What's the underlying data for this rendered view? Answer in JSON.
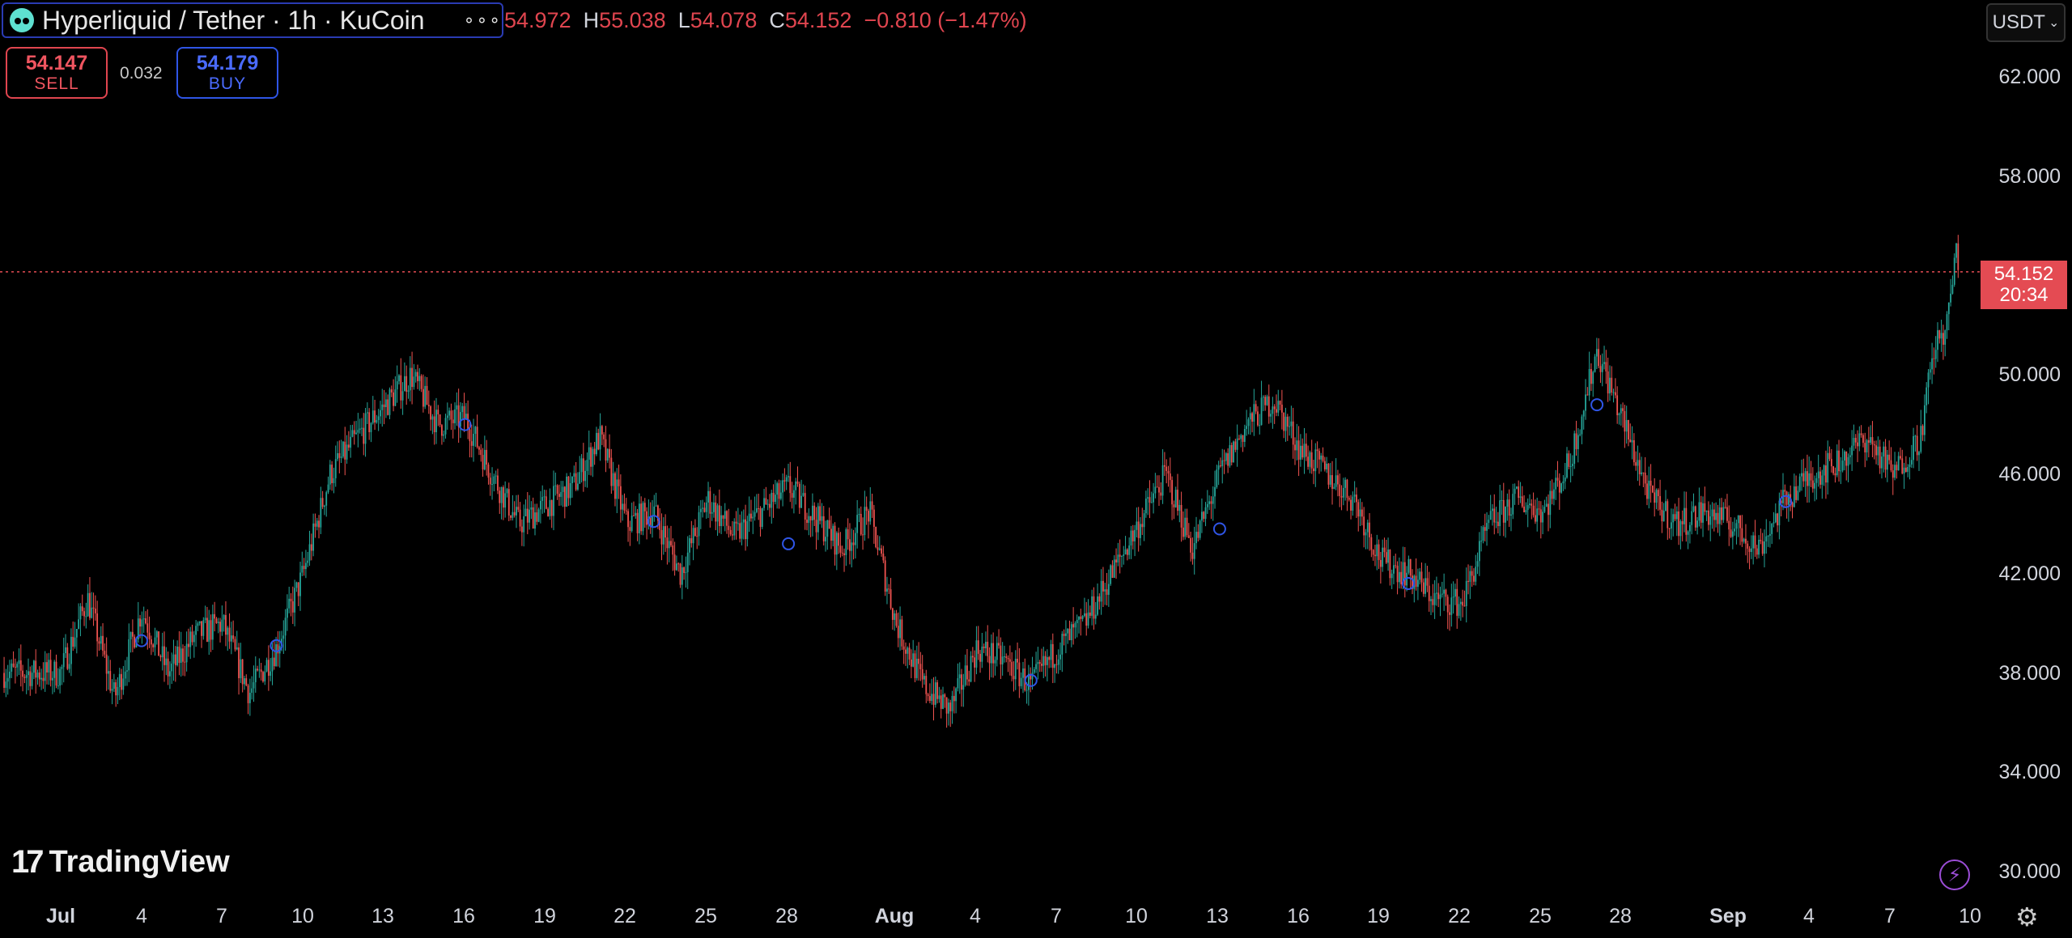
{
  "header": {
    "symbol_title": "Hyperliquid / Tether · 1h · KuCoin",
    "ohlc": {
      "open_value": "54.972",
      "high_label": "H",
      "high_value": "55.038",
      "low_label": "L",
      "low_value": "54.078",
      "close_label": "C",
      "close_value": "54.152",
      "change": "−0.810 (−1.47%)"
    }
  },
  "trade": {
    "sell_price": "54.147",
    "sell_label": "SELL",
    "spread": "0.032",
    "buy_price": "54.179",
    "buy_label": "BUY"
  },
  "currency_selector": {
    "value": "USDT"
  },
  "price_axis": {
    "labels": [
      "62.000",
      "58.000",
      "50.000",
      "46.000",
      "42.000",
      "38.000",
      "34.000",
      "30.000"
    ],
    "current_price": "54.152",
    "countdown": "20:34"
  },
  "time_axis": {
    "labels": [
      {
        "text": "Jul",
        "major": true
      },
      {
        "text": "4"
      },
      {
        "text": "7"
      },
      {
        "text": "10"
      },
      {
        "text": "13"
      },
      {
        "text": "16"
      },
      {
        "text": "19"
      },
      {
        "text": "22"
      },
      {
        "text": "25"
      },
      {
        "text": "28"
      },
      {
        "text": "Aug",
        "major": true
      },
      {
        "text": "4"
      },
      {
        "text": "7"
      },
      {
        "text": "10"
      },
      {
        "text": "13"
      },
      {
        "text": "16"
      },
      {
        "text": "19"
      },
      {
        "text": "22"
      },
      {
        "text": "25"
      },
      {
        "text": "28"
      },
      {
        "text": "Sep",
        "major": true
      },
      {
        "text": "4"
      },
      {
        "text": "7"
      },
      {
        "text": "10"
      }
    ]
  },
  "branding": {
    "logo_text": "TradingView",
    "logo_mark": "17"
  },
  "colors": {
    "up": "#26a69a",
    "down": "#ef5350",
    "marker": "#2f55e6",
    "accent": "#e44b53",
    "background": "#000000"
  },
  "chart_data": {
    "type": "candlestick",
    "title": "",
    "xlabel": "",
    "ylabel": "",
    "ylim": [
      30,
      64
    ],
    "x_range": [
      "Jul 1",
      "Sep 10"
    ],
    "last_price": 54.152,
    "series": [
      {
        "price_path": [
          {
            "x": "Jul 1",
            "y": 38.0
          },
          {
            "x": "Jul 2",
            "y": 41.0
          },
          {
            "x": "Jul 3",
            "y": 37.0
          },
          {
            "x": "Jul 4",
            "y": 40.5
          },
          {
            "x": "Jul 5",
            "y": 38.0
          },
          {
            "x": "Jul 6",
            "y": 39.5
          },
          {
            "x": "Jul 7",
            "y": 40.0
          },
          {
            "x": "Jul 8",
            "y": 37.2
          },
          {
            "x": "Jul 9",
            "y": 39.0
          },
          {
            "x": "Jul 10",
            "y": 42.0
          },
          {
            "x": "Jul 11",
            "y": 46.0
          },
          {
            "x": "Jul 12",
            "y": 47.5
          },
          {
            "x": "Jul 14",
            "y": 50.0
          },
          {
            "x": "Jul 15",
            "y": 48.0
          },
          {
            "x": "Jul 16",
            "y": 48.3
          },
          {
            "x": "Jul 17",
            "y": 46.0
          },
          {
            "x": "Jul 18",
            "y": 44.0
          },
          {
            "x": "Jul 20",
            "y": 45.5
          },
          {
            "x": "Jul 21",
            "y": 47.5
          },
          {
            "x": "Jul 22",
            "y": 44.0
          },
          {
            "x": "Jul 23",
            "y": 44.5
          },
          {
            "x": "Jul 24",
            "y": 42.0
          },
          {
            "x": "Jul 25",
            "y": 45.0
          },
          {
            "x": "Jul 26",
            "y": 43.5
          },
          {
            "x": "Jul 28",
            "y": 45.5
          },
          {
            "x": "Jul 30",
            "y": 43.0
          },
          {
            "x": "Jul 31",
            "y": 44.5
          },
          {
            "x": "Aug 1",
            "y": 40.0
          },
          {
            "x": "Aug 2",
            "y": 37.5
          },
          {
            "x": "Aug 3",
            "y": 36.5
          },
          {
            "x": "Aug 4",
            "y": 39.0
          },
          {
            "x": "Aug 5",
            "y": 38.5
          },
          {
            "x": "Aug 6",
            "y": 37.5
          },
          {
            "x": "Aug 7",
            "y": 39.0
          },
          {
            "x": "Aug 8",
            "y": 40.0
          },
          {
            "x": "Aug 9",
            "y": 42.0
          },
          {
            "x": "Aug 10",
            "y": 44.0
          },
          {
            "x": "Aug 11",
            "y": 46.0
          },
          {
            "x": "Aug 12",
            "y": 43.0
          },
          {
            "x": "Aug 13",
            "y": 46.0
          },
          {
            "x": "Aug 14",
            "y": 48.0
          },
          {
            "x": "Aug 15",
            "y": 49.0
          },
          {
            "x": "Aug 16",
            "y": 47.0
          },
          {
            "x": "Aug 17",
            "y": 46.0
          },
          {
            "x": "Aug 18",
            "y": 45.0
          },
          {
            "x": "Aug 19",
            "y": 42.5
          },
          {
            "x": "Aug 20",
            "y": 42.0
          },
          {
            "x": "Aug 21",
            "y": 41.0
          },
          {
            "x": "Aug 22",
            "y": 40.8
          },
          {
            "x": "Aug 23",
            "y": 44.0
          },
          {
            "x": "Aug 24",
            "y": 45.0
          },
          {
            "x": "Aug 25",
            "y": 44.5
          },
          {
            "x": "Aug 26",
            "y": 46.5
          },
          {
            "x": "Aug 27",
            "y": 51.0
          },
          {
            "x": "Aug 28",
            "y": 48.0
          },
          {
            "x": "Aug 29",
            "y": 45.0
          },
          {
            "x": "Aug 30",
            "y": 44.0
          },
          {
            "x": "Aug 31",
            "y": 44.5
          },
          {
            "x": "Sep 1",
            "y": 44.0
          },
          {
            "x": "Sep 2",
            "y": 43.0
          },
          {
            "x": "Sep 3",
            "y": 45.0
          },
          {
            "x": "Sep 4",
            "y": 46.0
          },
          {
            "x": "Sep 5",
            "y": 46.5
          },
          {
            "x": "Sep 6",
            "y": 47.5
          },
          {
            "x": "Sep 7",
            "y": 46.0
          },
          {
            "x": "Sep 8",
            "y": 47.5
          },
          {
            "x": "Sep 8.5",
            "y": 51.0
          },
          {
            "x": "Sep 9",
            "y": 52.0
          },
          {
            "x": "Sep 9.3",
            "y": 55.0
          },
          {
            "x": "Sep 9.4",
            "y": 54.152
          }
        ]
      }
    ],
    "markers": [
      {
        "x": "Jul 4",
        "y": 39.3
      },
      {
        "x": "Jul 9",
        "y": 39.1
      },
      {
        "x": "Jul 16",
        "y": 48.0
      },
      {
        "x": "Jul 23",
        "y": 44.1
      },
      {
        "x": "Jul 28",
        "y": 43.2
      },
      {
        "x": "Aug 6",
        "y": 37.7
      },
      {
        "x": "Aug 13",
        "y": 43.8
      },
      {
        "x": "Aug 20",
        "y": 41.6
      },
      {
        "x": "Aug 27",
        "y": 48.8
      },
      {
        "x": "Sep 3",
        "y": 44.9
      }
    ]
  }
}
